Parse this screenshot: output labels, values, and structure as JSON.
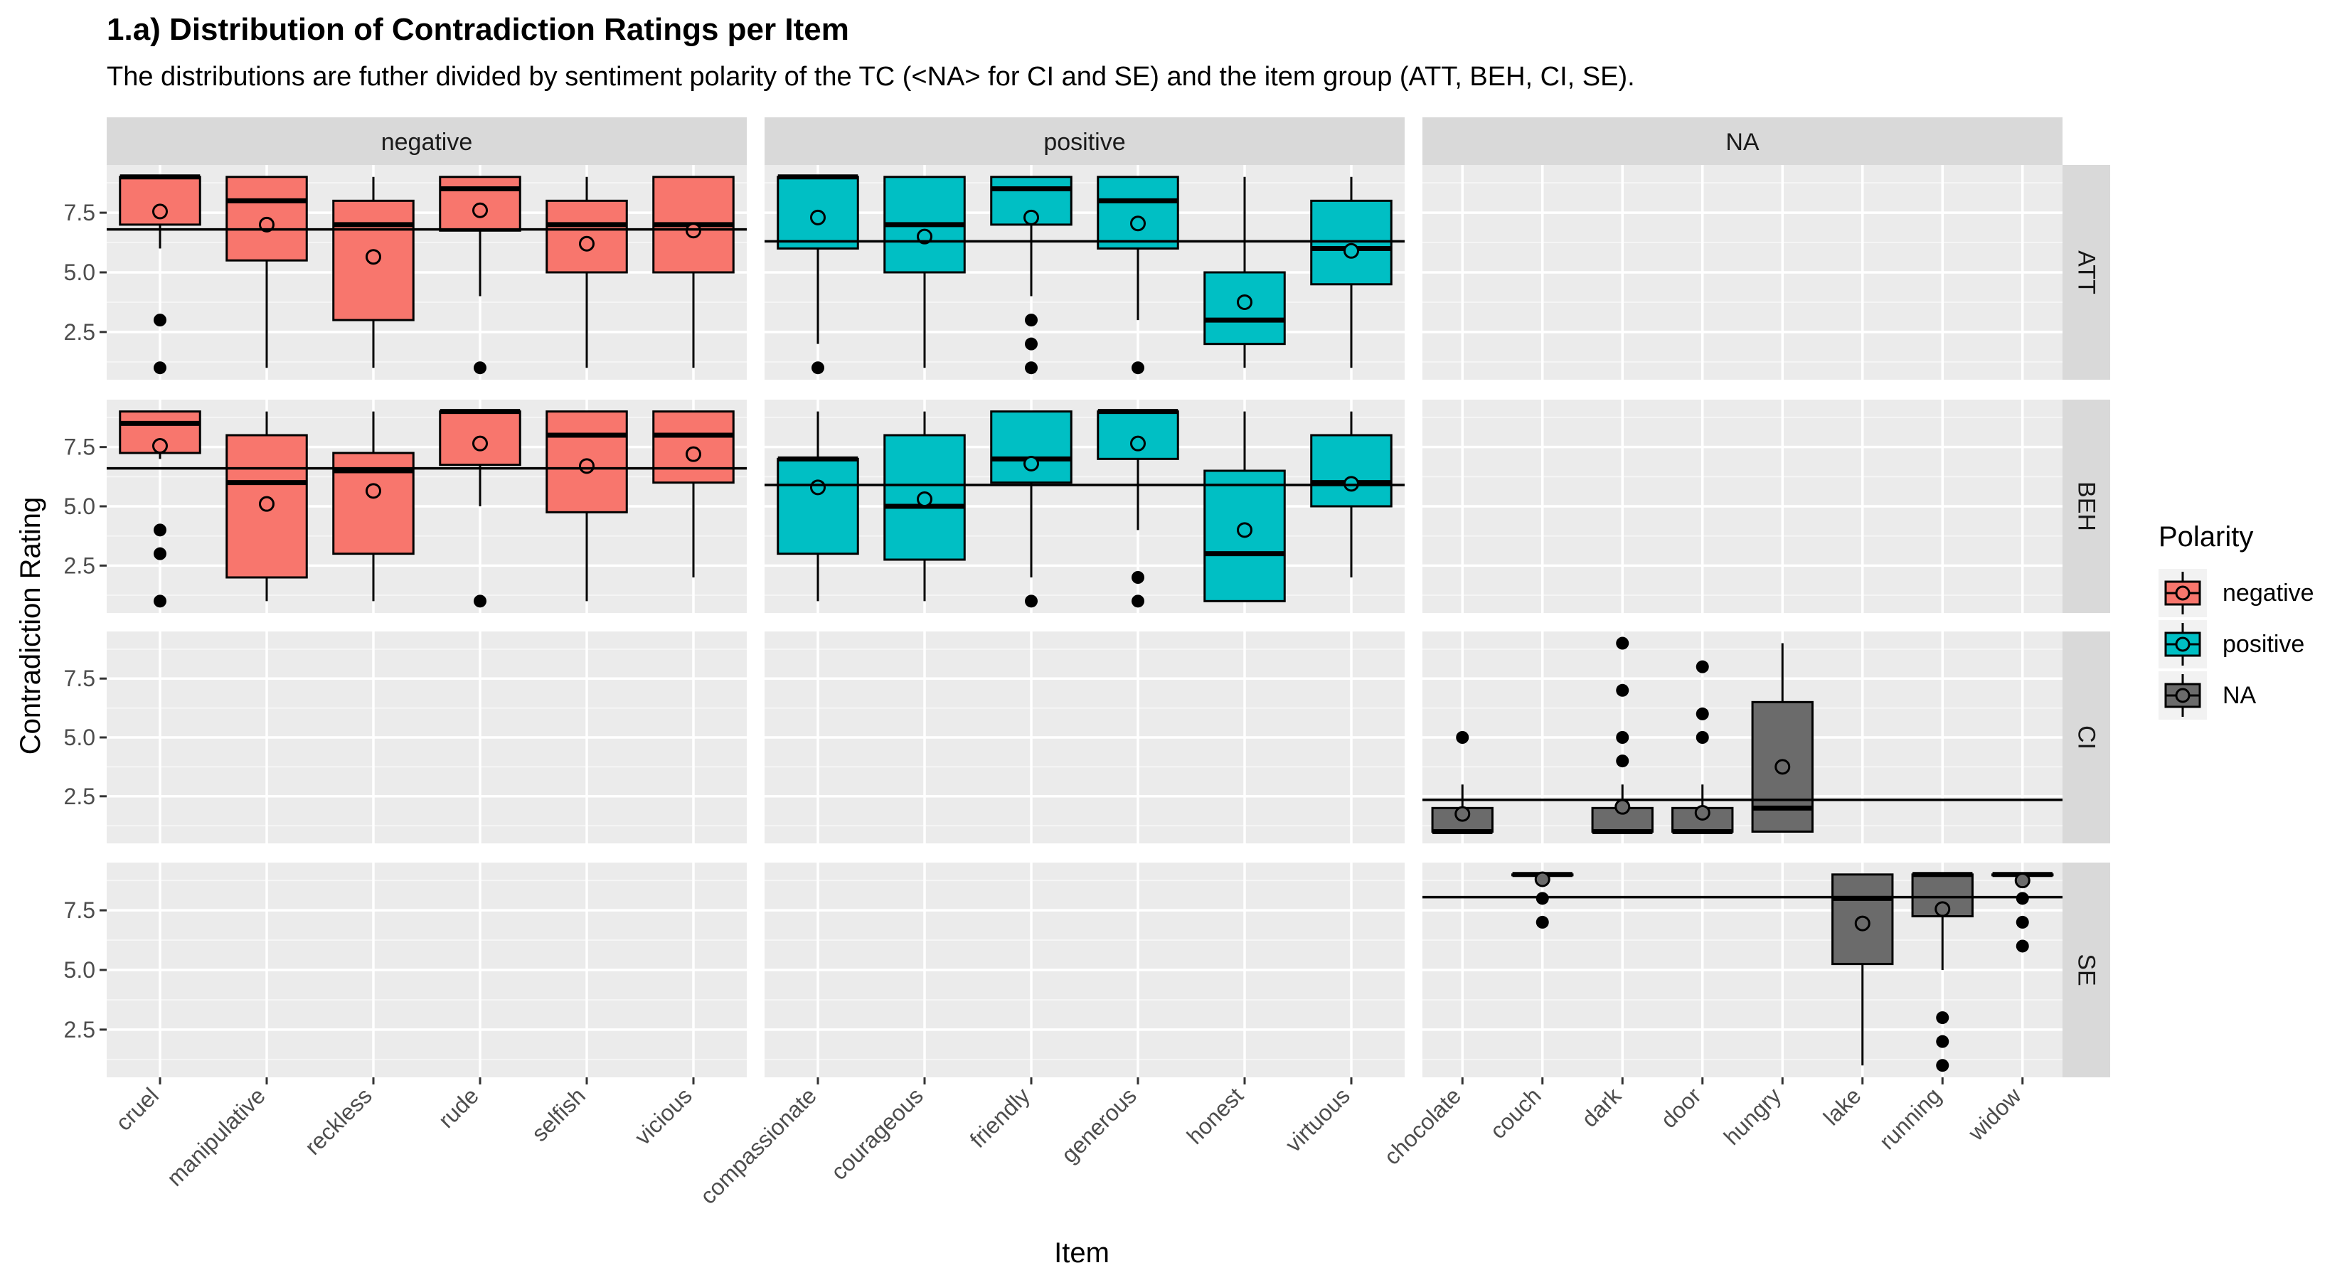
{
  "chart_data": {
    "type": "boxplot",
    "title": "1.a) Distribution of Contradiction Ratings per Item",
    "subtitle": "The distributions are futher divided by sentiment polarity of the TC (<NA> for CI and SE) and the item group (ATT, BEH, CI, SE).",
    "xlabel": "Item",
    "ylabel": "Contradiction Rating",
    "ylim": [
      0.5,
      9.5
    ],
    "y_ticks": [
      2.5,
      5.0,
      7.5
    ],
    "y_tick_labels": [
      "2.5",
      "5.0",
      "7.5"
    ],
    "legend": {
      "title": "Polarity",
      "position": "right",
      "entries": [
        {
          "label": "negative",
          "color": "#F8766D"
        },
        {
          "label": "positive",
          "color": "#00BFC4"
        },
        {
          "label": "NA",
          "color": "#6B6B6B"
        }
      ]
    },
    "columns": [
      {
        "label": "negative",
        "key": "negative",
        "items": [
          "cruel",
          "manipulative",
          "reckless",
          "rude",
          "selfish",
          "vicious"
        ]
      },
      {
        "label": "positive",
        "key": "positive",
        "items": [
          "compassionate",
          "courageous",
          "friendly",
          "generous",
          "honest",
          "virtuous"
        ]
      },
      {
        "label": "NA",
        "key": "na",
        "items": [
          "chocolate",
          "couch",
          "dark",
          "door",
          "hungry",
          "lake",
          "running",
          "widow"
        ]
      }
    ],
    "rows": [
      {
        "label": "ATT",
        "key": "ATT"
      },
      {
        "label": "BEH",
        "key": "BEH"
      },
      {
        "label": "CI",
        "key": "CI"
      },
      {
        "label": "SE",
        "key": "SE"
      }
    ],
    "panels": [
      {
        "row": "ATT",
        "col": "negative",
        "hline": 6.8,
        "boxes": [
          {
            "item": "cruel",
            "q1": 7,
            "median": 9,
            "q3": 9,
            "whisker_low": 6,
            "whisker_high": 9,
            "mean": 7.55,
            "outliers": [
              3,
              1
            ]
          },
          {
            "item": "manipulative",
            "q1": 5.5,
            "median": 8,
            "q3": 9,
            "whisker_low": 1,
            "whisker_high": 9,
            "mean": 7.0,
            "outliers": []
          },
          {
            "item": "reckless",
            "q1": 3,
            "median": 7,
            "q3": 8,
            "whisker_low": 1,
            "whisker_high": 9,
            "mean": 5.65,
            "outliers": []
          },
          {
            "item": "rude",
            "q1": 6.75,
            "median": 8.5,
            "q3": 9,
            "whisker_low": 4,
            "whisker_high": 9,
            "mean": 7.6,
            "outliers": [
              1
            ]
          },
          {
            "item": "selfish",
            "q1": 5,
            "median": 7,
            "q3": 8,
            "whisker_low": 1,
            "whisker_high": 9,
            "mean": 6.2,
            "outliers": []
          },
          {
            "item": "vicious",
            "q1": 5,
            "median": 7,
            "q3": 9,
            "whisker_low": 1,
            "whisker_high": 9,
            "mean": 6.75,
            "outliers": []
          }
        ]
      },
      {
        "row": "ATT",
        "col": "positive",
        "hline": 6.3,
        "boxes": [
          {
            "item": "compassionate",
            "q1": 6,
            "median": 9,
            "q3": 9,
            "whisker_low": 2,
            "whisker_high": 9,
            "mean": 7.3,
            "outliers": [
              1
            ]
          },
          {
            "item": "courageous",
            "q1": 5,
            "median": 7,
            "q3": 9,
            "whisker_low": 1,
            "whisker_high": 9,
            "mean": 6.5,
            "outliers": []
          },
          {
            "item": "friendly",
            "q1": 7,
            "median": 8.5,
            "q3": 9,
            "whisker_low": 4,
            "whisker_high": 9,
            "mean": 7.3,
            "outliers": [
              3,
              2,
              1
            ]
          },
          {
            "item": "generous",
            "q1": 6,
            "median": 8,
            "q3": 9,
            "whisker_low": 3,
            "whisker_high": 9,
            "mean": 7.05,
            "outliers": [
              1
            ]
          },
          {
            "item": "honest",
            "q1": 2,
            "median": 3,
            "q3": 5,
            "whisker_low": 1,
            "whisker_high": 9,
            "mean": 3.75,
            "outliers": []
          },
          {
            "item": "virtuous",
            "q1": 4.5,
            "median": 6,
            "q3": 8,
            "whisker_low": 1,
            "whisker_high": 9,
            "mean": 5.9,
            "outliers": []
          }
        ]
      },
      {
        "row": "BEH",
        "col": "negative",
        "hline": 6.6,
        "boxes": [
          {
            "item": "cruel",
            "q1": 7.25,
            "median": 8.5,
            "q3": 9,
            "whisker_low": 7,
            "whisker_high": 9,
            "mean": 7.55,
            "outliers": [
              4,
              3,
              1
            ]
          },
          {
            "item": "manipulative",
            "q1": 2,
            "median": 6,
            "q3": 8,
            "whisker_low": 1,
            "whisker_high": 9,
            "mean": 5.1,
            "outliers": []
          },
          {
            "item": "reckless",
            "q1": 3,
            "median": 6.5,
            "q3": 7.25,
            "whisker_low": 1,
            "whisker_high": 9,
            "mean": 5.65,
            "outliers": []
          },
          {
            "item": "rude",
            "q1": 6.75,
            "median": 9,
            "q3": 9,
            "whisker_low": 5,
            "whisker_high": 9,
            "mean": 7.65,
            "outliers": [
              1
            ]
          },
          {
            "item": "selfish",
            "q1": 4.75,
            "median": 8,
            "q3": 9,
            "whisker_low": 1,
            "whisker_high": 9,
            "mean": 6.7,
            "outliers": []
          },
          {
            "item": "vicious",
            "q1": 6,
            "median": 8,
            "q3": 9,
            "whisker_low": 2,
            "whisker_high": 9,
            "mean": 7.2,
            "outliers": []
          }
        ]
      },
      {
        "row": "BEH",
        "col": "positive",
        "hline": 5.9,
        "boxes": [
          {
            "item": "compassionate",
            "q1": 3,
            "median": 7,
            "q3": 7,
            "whisker_low": 1,
            "whisker_high": 9,
            "mean": 5.8,
            "outliers": []
          },
          {
            "item": "courageous",
            "q1": 2.75,
            "median": 5,
            "q3": 8,
            "whisker_low": 1,
            "whisker_high": 9,
            "mean": 5.3,
            "outliers": []
          },
          {
            "item": "friendly",
            "q1": 6,
            "median": 7,
            "q3": 9,
            "whisker_low": 2,
            "whisker_high": 9,
            "mean": 6.8,
            "outliers": [
              1
            ]
          },
          {
            "item": "generous",
            "q1": 7,
            "median": 9,
            "q3": 9,
            "whisker_low": 4,
            "whisker_high": 9,
            "mean": 7.65,
            "outliers": [
              2,
              1
            ]
          },
          {
            "item": "honest",
            "q1": 1,
            "median": 3,
            "q3": 6.5,
            "whisker_low": 1,
            "whisker_high": 9,
            "mean": 4.0,
            "outliers": []
          },
          {
            "item": "virtuous",
            "q1": 5,
            "median": 6,
            "q3": 8,
            "whisker_low": 2,
            "whisker_high": 9,
            "mean": 5.95,
            "outliers": []
          }
        ]
      },
      {
        "row": "CI",
        "col": "na",
        "hline": 2.35,
        "boxes": [
          {
            "item": "chocolate",
            "q1": 1,
            "median": 1,
            "q3": 2,
            "whisker_low": 1,
            "whisker_high": 3,
            "mean": 1.75,
            "outliers": [
              5
            ]
          },
          {
            "item": "dark",
            "q1": 1,
            "median": 1,
            "q3": 2,
            "whisker_low": 1,
            "whisker_high": 3,
            "mean": 2.05,
            "outliers": [
              9,
              7,
              5,
              4
            ]
          },
          {
            "item": "door",
            "q1": 1,
            "median": 1,
            "q3": 2,
            "whisker_low": 1,
            "whisker_high": 3,
            "mean": 1.8,
            "outliers": [
              8,
              6,
              5
            ]
          },
          {
            "item": "hungry",
            "q1": 1,
            "median": 2,
            "q3": 6.5,
            "whisker_low": 1,
            "whisker_high": 9,
            "mean": 3.75,
            "outliers": []
          }
        ]
      },
      {
        "row": "SE",
        "col": "na",
        "hline": 8.05,
        "boxes": [
          {
            "item": "couch",
            "q1": 9,
            "median": 9,
            "q3": 9,
            "whisker_low": 9,
            "whisker_high": 9,
            "mean": 8.8,
            "outliers": [
              8,
              7
            ]
          },
          {
            "item": "lake",
            "q1": 5.25,
            "median": 8,
            "q3": 9,
            "whisker_low": 1,
            "whisker_high": 9,
            "mean": 6.95,
            "outliers": []
          },
          {
            "item": "running",
            "q1": 7.25,
            "median": 9,
            "q3": 9,
            "whisker_low": 5,
            "whisker_high": 9,
            "mean": 7.55,
            "outliers": [
              3,
              2,
              1
            ]
          },
          {
            "item": "widow",
            "q1": 9,
            "median": 9,
            "q3": 9,
            "whisker_low": 9,
            "whisker_high": 9,
            "mean": 8.75,
            "outliers": [
              8,
              7,
              6
            ]
          }
        ]
      }
    ]
  }
}
